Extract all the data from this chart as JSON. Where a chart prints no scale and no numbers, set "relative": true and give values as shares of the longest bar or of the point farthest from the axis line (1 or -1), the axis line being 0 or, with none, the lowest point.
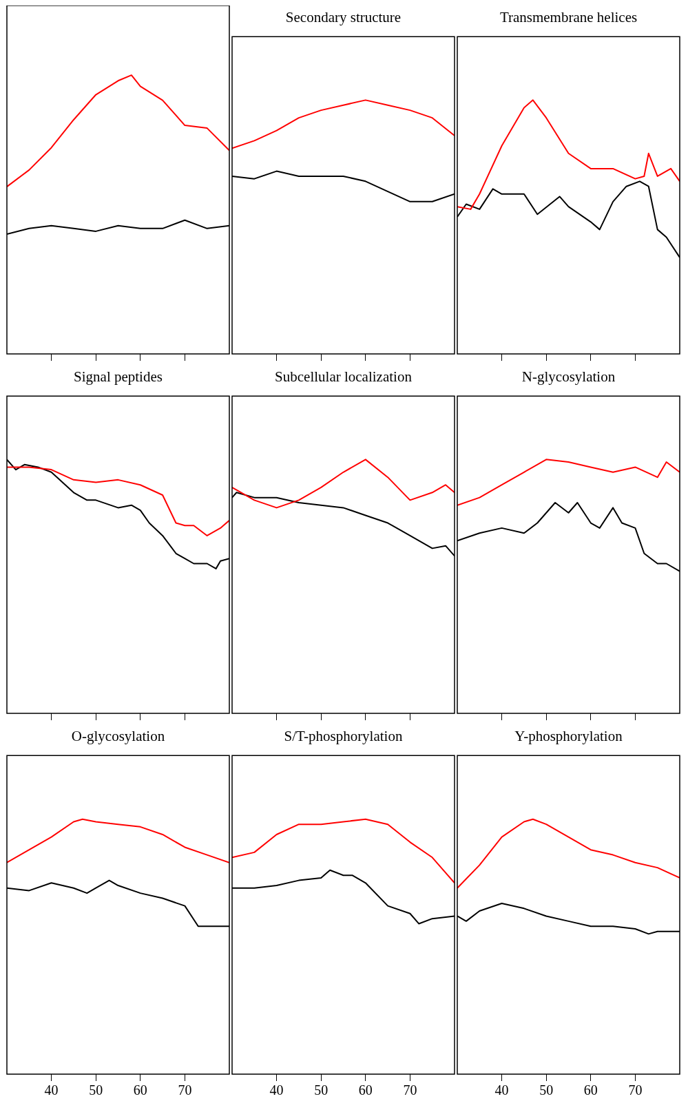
{
  "chart_data": [
    {
      "type": "line",
      "title": null,
      "relative": true,
      "xlim": [
        30,
        80
      ],
      "xticks": [
        40,
        50,
        60,
        70
      ],
      "tick_labels": false,
      "grid": false,
      "legend": false,
      "marker": "none",
      "line_style": "solid",
      "series": [
        {
          "color": "#ff0000",
          "x": [
            30,
            35,
            40,
            45,
            50,
            55,
            58,
            60,
            65,
            70,
            75,
            80
          ],
          "values": [
            0.6,
            0.66,
            0.74,
            0.84,
            0.93,
            0.98,
            1.0,
            0.96,
            0.91,
            0.82,
            0.81,
            0.73
          ]
        },
        {
          "color": "#000000",
          "x": [
            30,
            35,
            40,
            45,
            50,
            55,
            60,
            65,
            70,
            75,
            80
          ],
          "values": [
            0.43,
            0.45,
            0.46,
            0.45,
            0.44,
            0.46,
            0.45,
            0.45,
            0.48,
            0.45,
            0.46
          ]
        }
      ]
    },
    {
      "type": "line",
      "title": "Secondary structure",
      "relative": true,
      "xlim": [
        30,
        80
      ],
      "xticks": [
        40,
        50,
        60,
        70
      ],
      "tick_labels": false,
      "grid": false,
      "legend": false,
      "marker": "none",
      "line_style": "solid",
      "series": [
        {
          "color": "#ff0000",
          "x": [
            30,
            35,
            40,
            45,
            50,
            55,
            60,
            65,
            70,
            75,
            80
          ],
          "values": [
            0.81,
            0.84,
            0.88,
            0.93,
            0.96,
            0.98,
            1.0,
            0.98,
            0.96,
            0.93,
            0.86
          ]
        },
        {
          "color": "#000000",
          "x": [
            30,
            35,
            40,
            45,
            50,
            55,
            60,
            65,
            70,
            75,
            80
          ],
          "values": [
            0.7,
            0.69,
            0.72,
            0.7,
            0.7,
            0.7,
            0.68,
            0.64,
            0.6,
            0.6,
            0.63
          ]
        }
      ]
    },
    {
      "type": "line",
      "title": "Transmembrane helices",
      "relative": true,
      "xlim": [
        30,
        80
      ],
      "xticks": [
        40,
        50,
        60,
        70
      ],
      "tick_labels": false,
      "grid": false,
      "legend": false,
      "marker": "none",
      "line_style": "solid",
      "series": [
        {
          "color": "#ff0000",
          "x": [
            30,
            33,
            35,
            40,
            45,
            47,
            50,
            55,
            60,
            65,
            70,
            72,
            73,
            75,
            78,
            80
          ],
          "values": [
            0.58,
            0.57,
            0.63,
            0.82,
            0.97,
            1.0,
            0.93,
            0.79,
            0.73,
            0.73,
            0.69,
            0.7,
            0.79,
            0.7,
            0.73,
            0.68
          ]
        },
        {
          "color": "#000000",
          "x": [
            30,
            32,
            35,
            38,
            40,
            45,
            48,
            53,
            55,
            60,
            62,
            65,
            68,
            71,
            73,
            75,
            77,
            80
          ],
          "values": [
            0.54,
            0.59,
            0.57,
            0.65,
            0.63,
            0.63,
            0.55,
            0.62,
            0.58,
            0.52,
            0.49,
            0.6,
            0.66,
            0.68,
            0.66,
            0.49,
            0.46,
            0.38
          ]
        }
      ]
    },
    {
      "type": "line",
      "title": "Signal peptides",
      "relative": true,
      "xlim": [
        30,
        80
      ],
      "xticks": [
        40,
        50,
        60,
        70
      ],
      "tick_labels": false,
      "grid": false,
      "legend": false,
      "marker": "none",
      "line_style": "solid",
      "series": [
        {
          "color": "#ff0000",
          "x": [
            30,
            35,
            40,
            45,
            50,
            55,
            60,
            65,
            68,
            70,
            72,
            75,
            78,
            80
          ],
          "values": [
            0.97,
            0.97,
            0.96,
            0.92,
            0.91,
            0.92,
            0.9,
            0.86,
            0.75,
            0.74,
            0.74,
            0.7,
            0.73,
            0.76
          ]
        },
        {
          "color": "#000000",
          "x": [
            30,
            32,
            34,
            37,
            40,
            45,
            48,
            50,
            55,
            58,
            60,
            62,
            65,
            68,
            70,
            72,
            75,
            77,
            78,
            80
          ],
          "values": [
            1.0,
            0.96,
            0.98,
            0.97,
            0.95,
            0.87,
            0.84,
            0.84,
            0.81,
            0.82,
            0.8,
            0.75,
            0.7,
            0.63,
            0.61,
            0.59,
            0.59,
            0.57,
            0.6,
            0.61
          ]
        }
      ]
    },
    {
      "type": "line",
      "title": "Subcellular localization",
      "relative": true,
      "xlim": [
        30,
        80
      ],
      "xticks": [
        40,
        50,
        60,
        70
      ],
      "tick_labels": false,
      "grid": false,
      "legend": false,
      "marker": "none",
      "line_style": "solid",
      "series": [
        {
          "color": "#ff0000",
          "x": [
            30,
            35,
            40,
            45,
            50,
            55,
            60,
            65,
            70,
            75,
            78,
            80
          ],
          "values": [
            0.89,
            0.84,
            0.81,
            0.84,
            0.89,
            0.95,
            1.0,
            0.93,
            0.84,
            0.87,
            0.9,
            0.87
          ]
        },
        {
          "color": "#000000",
          "x": [
            30,
            31,
            35,
            40,
            45,
            50,
            55,
            60,
            65,
            70,
            75,
            78,
            80
          ],
          "values": [
            0.85,
            0.87,
            0.85,
            0.85,
            0.83,
            0.82,
            0.81,
            0.78,
            0.75,
            0.7,
            0.65,
            0.66,
            0.62
          ]
        }
      ]
    },
    {
      "type": "line",
      "title": "N-glycosylation",
      "relative": true,
      "xlim": [
        30,
        80
      ],
      "xticks": [
        40,
        50,
        60,
        70
      ],
      "tick_labels": false,
      "grid": false,
      "legend": false,
      "marker": "none",
      "line_style": "solid",
      "series": [
        {
          "color": "#ff0000",
          "x": [
            30,
            35,
            40,
            45,
            50,
            55,
            60,
            65,
            70,
            75,
            77,
            80
          ],
          "values": [
            0.82,
            0.85,
            0.9,
            0.95,
            1.0,
            0.99,
            0.97,
            0.95,
            0.97,
            0.93,
            0.99,
            0.95
          ]
        },
        {
          "color": "#000000",
          "x": [
            30,
            35,
            40,
            45,
            48,
            52,
            55,
            57,
            60,
            62,
            65,
            67,
            70,
            72,
            75,
            77,
            80
          ],
          "values": [
            0.68,
            0.71,
            0.73,
            0.71,
            0.75,
            0.83,
            0.79,
            0.83,
            0.75,
            0.73,
            0.81,
            0.75,
            0.73,
            0.63,
            0.59,
            0.59,
            0.56
          ]
        }
      ]
    },
    {
      "type": "line",
      "title": "O-glycosylation",
      "relative": true,
      "xlim": [
        30,
        80
      ],
      "xticks": [
        40,
        50,
        60,
        70
      ],
      "tick_labels": "x",
      "grid": false,
      "legend": false,
      "marker": "none",
      "line_style": "solid",
      "series": [
        {
          "color": "#ff0000",
          "x": [
            30,
            35,
            40,
            45,
            47,
            50,
            55,
            60,
            65,
            70,
            75,
            80
          ],
          "values": [
            0.83,
            0.88,
            0.93,
            0.99,
            1.0,
            0.99,
            0.98,
            0.97,
            0.94,
            0.89,
            0.86,
            0.83
          ]
        },
        {
          "color": "#000000",
          "x": [
            30,
            35,
            40,
            45,
            48,
            50,
            53,
            55,
            60,
            65,
            70,
            73,
            75,
            80
          ],
          "values": [
            0.73,
            0.72,
            0.75,
            0.73,
            0.71,
            0.73,
            0.76,
            0.74,
            0.71,
            0.69,
            0.66,
            0.58,
            0.58,
            0.58
          ]
        }
      ]
    },
    {
      "type": "line",
      "title": "S/T-phosphorylation",
      "relative": true,
      "xlim": [
        30,
        80
      ],
      "xticks": [
        40,
        50,
        60,
        70
      ],
      "tick_labels": "x",
      "grid": false,
      "legend": false,
      "marker": "none",
      "line_style": "solid",
      "series": [
        {
          "color": "#ff0000",
          "x": [
            30,
            35,
            40,
            45,
            50,
            55,
            60,
            65,
            70,
            75,
            80
          ],
          "values": [
            0.85,
            0.87,
            0.94,
            0.98,
            0.98,
            0.99,
            1.0,
            0.98,
            0.91,
            0.85,
            0.75
          ]
        },
        {
          "color": "#000000",
          "x": [
            30,
            35,
            40,
            45,
            50,
            52,
            55,
            57,
            60,
            65,
            70,
            72,
            75,
            80
          ],
          "values": [
            0.73,
            0.73,
            0.74,
            0.76,
            0.77,
            0.8,
            0.78,
            0.78,
            0.75,
            0.66,
            0.63,
            0.59,
            0.61,
            0.62
          ]
        }
      ]
    },
    {
      "type": "line",
      "title": "Y-phosphorylation",
      "relative": true,
      "xlim": [
        30,
        80
      ],
      "xticks": [
        40,
        50,
        60,
        70
      ],
      "tick_labels": "x",
      "grid": false,
      "legend": false,
      "marker": "none",
      "line_style": "solid",
      "series": [
        {
          "color": "#ff0000",
          "x": [
            30,
            35,
            40,
            45,
            47,
            50,
            55,
            60,
            65,
            70,
            75,
            80
          ],
          "values": [
            0.73,
            0.82,
            0.93,
            0.99,
            1.0,
            0.98,
            0.93,
            0.88,
            0.86,
            0.83,
            0.81,
            0.77
          ]
        },
        {
          "color": "#000000",
          "x": [
            30,
            32,
            35,
            40,
            45,
            50,
            55,
            60,
            65,
            70,
            73,
            75,
            80
          ],
          "values": [
            0.62,
            0.6,
            0.64,
            0.67,
            0.65,
            0.62,
            0.6,
            0.58,
            0.58,
            0.57,
            0.55,
            0.56,
            0.56
          ]
        }
      ]
    }
  ]
}
